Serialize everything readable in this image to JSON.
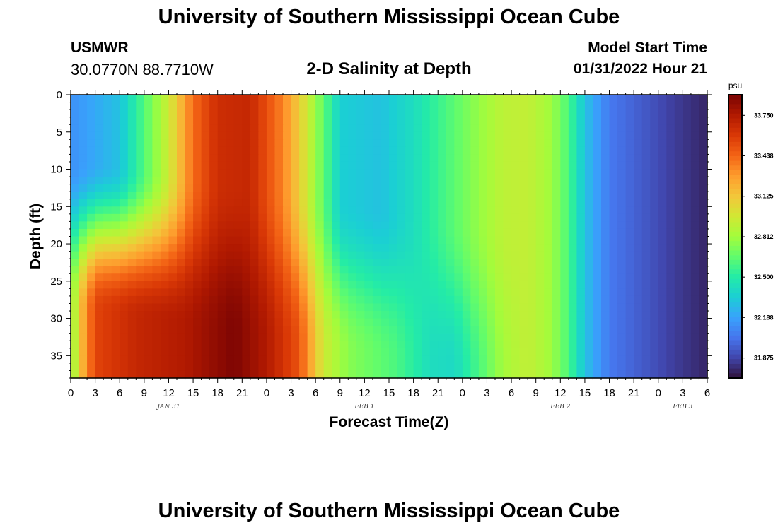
{
  "header": {
    "title": "University of Southern Mississippi Ocean Cube",
    "station_id": "USMWR",
    "station_coords": "30.0770N  88.7710W",
    "subtitle": "2-D Salinity at Depth",
    "start_label": "Model Start Time",
    "start_value": "01/31/2022 Hour 21"
  },
  "footer": {
    "title": "University of Southern Mississippi Ocean Cube"
  },
  "chart_data": {
    "type": "heatmap",
    "title": "2-D Salinity at Depth",
    "xlabel": "Forecast Time(Z)",
    "ylabel": "Depth (ft)",
    "colorbar_unit": "psu",
    "x_tick_labels": [
      "0",
      "3",
      "6",
      "9",
      "12",
      "15",
      "18",
      "21",
      "0",
      "3",
      "6",
      "9",
      "12",
      "15",
      "18",
      "21",
      "0",
      "3",
      "6",
      "9",
      "12",
      "15",
      "18",
      "21",
      "0",
      "3",
      "6"
    ],
    "x_day_labels": [
      {
        "label": "JAN 31",
        "hour": 12
      },
      {
        "label": "FEB 1",
        "hour": 36
      },
      {
        "label": "FEB 2",
        "hour": 60
      },
      {
        "label": "FEB 3",
        "hour": 75
      }
    ],
    "x_range_hours": [
      0,
      78
    ],
    "y_ticks": [
      0,
      5,
      10,
      15,
      20,
      25,
      30,
      35
    ],
    "y_range_ft": [
      0,
      38
    ],
    "y_inverted": true,
    "colorbar_ticks": [
      "33.750",
      "33.438",
      "33.125",
      "32.812",
      "32.500",
      "32.188",
      "31.875"
    ],
    "colorbar_range": [
      31.72,
      33.91
    ],
    "grid": false,
    "salinity_at_depth_0ft": [
      {
        "hour": 0,
        "psu": 32.13
      },
      {
        "hour": 6,
        "psu": 32.3
      },
      {
        "hour": 9,
        "psu": 32.62
      },
      {
        "hour": 12,
        "psu": 32.95
      },
      {
        "hour": 15,
        "psu": 33.42
      },
      {
        "hour": 18,
        "psu": 33.65
      },
      {
        "hour": 22,
        "psu": 33.68
      },
      {
        "hour": 26,
        "psu": 33.35
      },
      {
        "hour": 28,
        "psu": 33.1
      },
      {
        "hour": 30,
        "psu": 32.8
      },
      {
        "hour": 33,
        "psu": 32.35
      },
      {
        "hour": 38,
        "psu": 32.3
      },
      {
        "hour": 42,
        "psu": 32.42
      },
      {
        "hour": 46,
        "psu": 32.6
      },
      {
        "hour": 50,
        "psu": 32.78
      },
      {
        "hour": 53,
        "psu": 32.9
      },
      {
        "hour": 56,
        "psu": 32.92
      },
      {
        "hour": 59,
        "psu": 32.8
      },
      {
        "hour": 61,
        "psu": 32.6
      },
      {
        "hour": 63,
        "psu": 32.3
      },
      {
        "hour": 66,
        "psu": 32.05
      },
      {
        "hour": 70,
        "psu": 31.95
      },
      {
        "hour": 74,
        "psu": 31.85
      },
      {
        "hour": 78,
        "psu": 31.78
      }
    ],
    "salinity_at_depth_37ft": [
      {
        "hour": 0,
        "psu": 32.7
      },
      {
        "hour": 1,
        "psu": 33.1
      },
      {
        "hour": 3,
        "psu": 33.55
      },
      {
        "hour": 8,
        "psu": 33.68
      },
      {
        "hour": 14,
        "psu": 33.75
      },
      {
        "hour": 20,
        "psu": 33.9
      },
      {
        "hour": 24,
        "psu": 33.75
      },
      {
        "hour": 28,
        "psu": 33.5
      },
      {
        "hour": 31,
        "psu": 32.95
      },
      {
        "hour": 34,
        "psu": 32.75
      },
      {
        "hour": 40,
        "psu": 32.6
      },
      {
        "hour": 44,
        "psu": 32.42
      },
      {
        "hour": 47,
        "psu": 32.4
      },
      {
        "hour": 50,
        "psu": 32.6
      },
      {
        "hour": 53,
        "psu": 32.82
      },
      {
        "hour": 56,
        "psu": 32.92
      },
      {
        "hour": 59,
        "psu": 32.8
      },
      {
        "hour": 61,
        "psu": 32.6
      },
      {
        "hour": 63,
        "psu": 32.3
      },
      {
        "hour": 66,
        "psu": 32.05
      },
      {
        "hour": 70,
        "psu": 31.95
      },
      {
        "hour": 74,
        "psu": 31.85
      },
      {
        "hour": 78,
        "psu": 31.78
      }
    ],
    "colors": {
      "colormap": [
        "#30123b",
        "#4145ab",
        "#4675ed",
        "#39a2fc",
        "#1bcfd4",
        "#24eca6",
        "#61fc6c",
        "#a4fc3b",
        "#d1e834",
        "#f3c63a",
        "#fe9b2d",
        "#f36315",
        "#d93806",
        "#b11901",
        "#7a0403"
      ]
    }
  }
}
